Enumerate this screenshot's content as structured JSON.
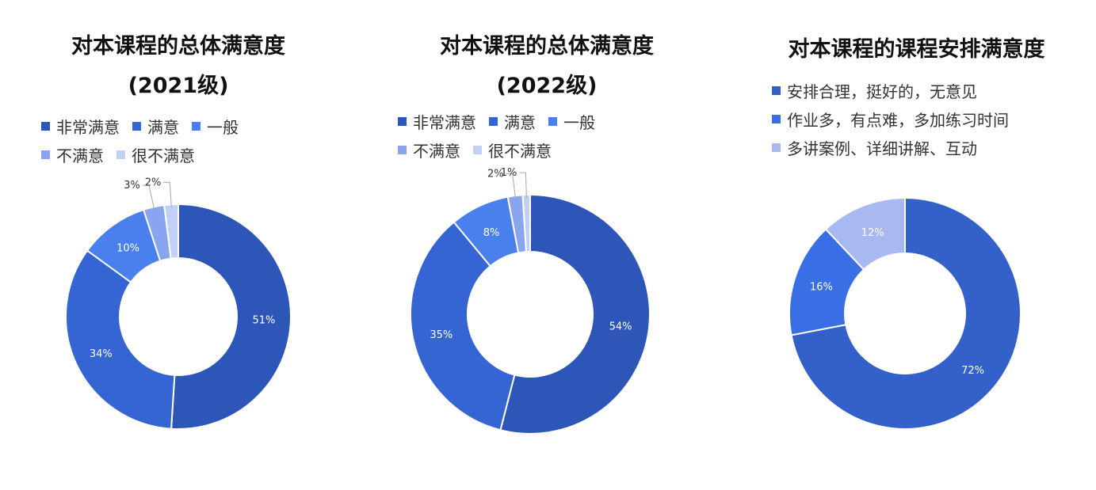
{
  "chart_data": [
    {
      "type": "pie",
      "donut": true,
      "title": "对本课程的总体满意度",
      "subtitle": "(2021级)",
      "categories": [
        "非常满意",
        "满意",
        "一般",
        "不满意",
        "很不满意"
      ],
      "values": [
        51,
        34,
        10,
        3,
        2
      ],
      "labels": [
        "51%",
        "34%",
        "10%",
        "3%",
        "2%"
      ],
      "colors": [
        "#2e56b8",
        "#3564d3",
        "#4a80ee",
        "#8aa5ef",
        "#c2cff7"
      ],
      "legend_placement": "top"
    },
    {
      "type": "pie",
      "donut": true,
      "title": "对本课程的总体满意度",
      "subtitle": "(2022级)",
      "categories": [
        "非常满意",
        "满意",
        "一般",
        "不满意",
        "很不满意"
      ],
      "values": [
        54,
        35,
        8,
        2,
        1
      ],
      "labels": [
        "54%",
        "35%",
        "8%",
        "2%",
        "1%"
      ],
      "colors": [
        "#2e56b8",
        "#3564d3",
        "#4a80ee",
        "#8aa5ef",
        "#c2cff7"
      ],
      "legend_placement": "top"
    },
    {
      "type": "pie",
      "donut": true,
      "title": "对本课程的课程安排满意度",
      "subtitle": "",
      "categories": [
        "安排合理，挺好的，无意见",
        "作业多，有点难，多加练习时间",
        "多讲案例、详细讲解、互动"
      ],
      "values": [
        72,
        16,
        12
      ],
      "labels": [
        "72%",
        "16%",
        "12%"
      ],
      "colors": [
        "#3460c9",
        "#3a6ee4",
        "#a8b9f2"
      ],
      "legend_placement": "top"
    }
  ]
}
